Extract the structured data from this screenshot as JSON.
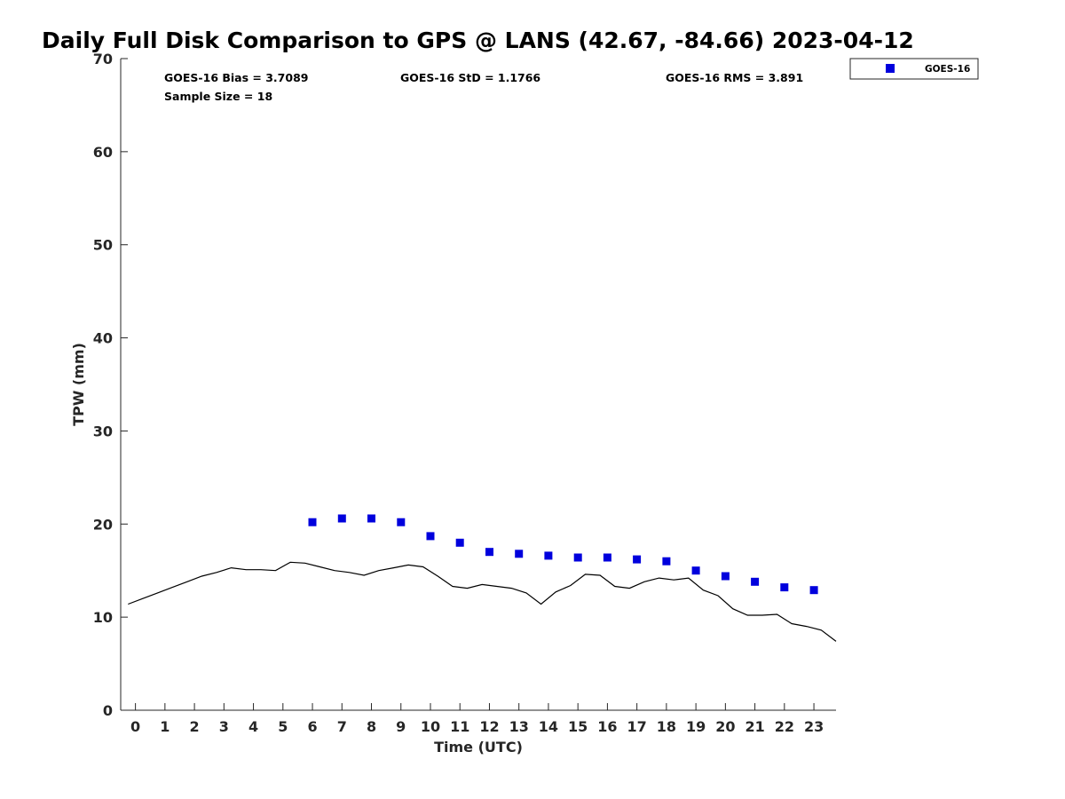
{
  "chart_data": {
    "type": "scatter",
    "title": "Daily Full Disk Comparison to GPS @ LANS (42.67, -84.66) 2023-04-12",
    "xlabel": "Time (UTC)",
    "ylabel": "TPW (mm)",
    "xlim": [
      -0.5,
      23.75
    ],
    "ylim": [
      0,
      70
    ],
    "x_ticks": [
      0,
      1,
      2,
      3,
      4,
      5,
      6,
      7,
      8,
      9,
      10,
      11,
      12,
      13,
      14,
      15,
      16,
      17,
      18,
      19,
      20,
      21,
      22,
      23
    ],
    "x_tick_labels": [
      "0",
      "1",
      "2",
      "3",
      "4",
      "5",
      "6",
      "7",
      "8",
      "9",
      "10",
      "11",
      "12",
      "13",
      "14",
      "15",
      "16",
      "17",
      "18",
      "19",
      "20",
      "21",
      "22",
      "23"
    ],
    "y_ticks": [
      0,
      10,
      20,
      30,
      40,
      50,
      60,
      70
    ],
    "y_tick_labels": [
      "0",
      "10",
      "20",
      "30",
      "40",
      "50",
      "60",
      "70"
    ],
    "grid": false,
    "legend_position": "top-right outside",
    "stats": {
      "bias": "GOES-16 Bias = 3.7089",
      "std": "GOES-16 StD = 1.1766",
      "rms": "GOES-16 RMS = 3.891",
      "sample_size": "Sample Size = 18"
    },
    "series": [
      {
        "name": "GOES-16",
        "kind": "scatter",
        "marker": "square",
        "color": "#0000dd",
        "x": [
          6,
          7,
          8,
          9,
          10,
          11,
          12,
          13,
          14,
          15,
          16,
          17,
          18,
          19,
          20,
          21,
          22,
          23
        ],
        "y": [
          20.2,
          20.6,
          20.6,
          20.2,
          18.7,
          18.0,
          17.0,
          16.8,
          16.6,
          16.4,
          16.4,
          16.2,
          16.0,
          15.0,
          14.4,
          13.8,
          13.2,
          12.9
        ]
      },
      {
        "kind": "line",
        "color": "#000000",
        "x": [
          -0.25,
          0.25,
          0.75,
          1.25,
          1.75,
          2.25,
          2.75,
          3.25,
          3.75,
          4.25,
          4.75,
          5.25,
          5.75,
          6.25,
          6.75,
          7.25,
          7.75,
          8.25,
          8.75,
          9.25,
          9.75,
          10.25,
          10.75,
          11.25,
          11.75,
          12.25,
          12.75,
          13.25,
          13.75,
          14.25,
          14.75,
          15.25,
          15.75,
          16.25,
          16.75,
          17.25,
          17.75,
          18.25,
          18.75,
          19.25,
          19.75,
          20.25,
          20.75,
          21.25,
          21.75,
          22.25,
          22.75,
          23.25,
          23.75
        ],
        "y": [
          11.4,
          12.0,
          12.6,
          13.2,
          13.8,
          14.4,
          14.8,
          15.3,
          15.1,
          15.1,
          15.0,
          15.9,
          15.8,
          15.4,
          15.0,
          14.8,
          14.5,
          15.0,
          15.3,
          15.6,
          15.4,
          14.4,
          13.3,
          13.1,
          13.5,
          13.3,
          13.1,
          12.6,
          11.4,
          12.7,
          13.4,
          14.6,
          14.5,
          13.3,
          13.1,
          13.8,
          14.2,
          14.0,
          14.2,
          12.9,
          12.3,
          10.9,
          10.2,
          10.2,
          10.3,
          9.3,
          9.0,
          8.6,
          7.4
        ]
      }
    ]
  }
}
